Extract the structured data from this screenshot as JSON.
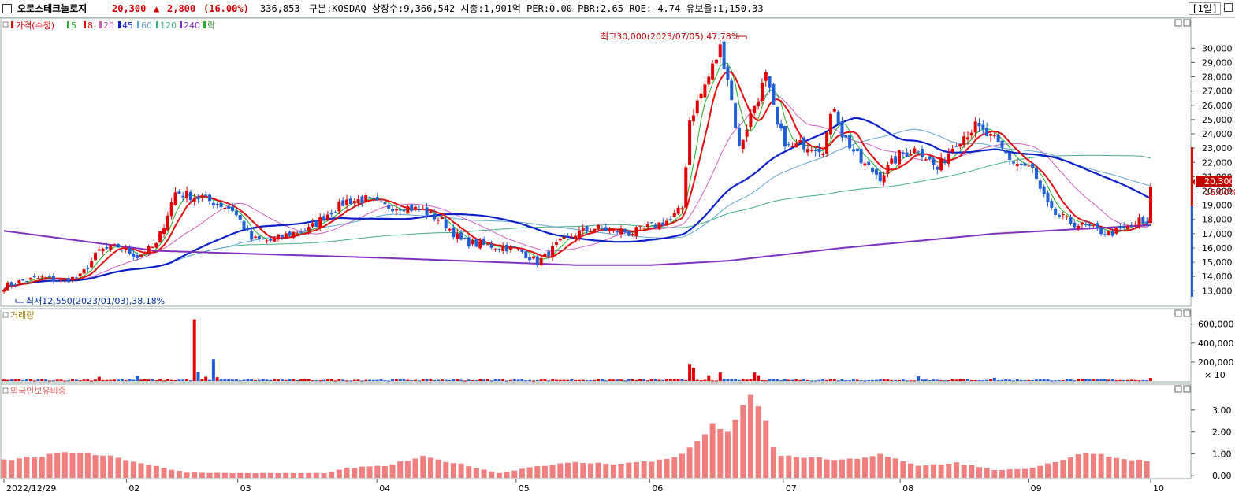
{
  "header": {
    "name": "오로스테크놀로지",
    "price": "20,300",
    "change_arrow": "▲",
    "change": "2,800",
    "change_pct": "(16.00%)",
    "volume": "336,853",
    "info": "구분:KOSDAQ 상장수:9,366,542 시총:1,901억 PER:0.00 PBR:2.65 ROE:-4.74 유보율:1,150.33",
    "timeframe": "1일"
  },
  "legend": {
    "price": "가격(수정)",
    "ma": [
      "5",
      "8",
      "20",
      "45",
      "60",
      "120",
      "240"
    ],
    "last": "락"
  },
  "annotations": {
    "high": "최고30,000(2023/07/05),47.78%",
    "low": "최저12,550(2023/01/03),38.18%",
    "last_price": "20,300",
    "last_pct": "16.00%"
  },
  "panels": {
    "volume_label": "거래량",
    "volume_multiplier": "× 10",
    "foreign_label": "외국인보유비중"
  },
  "colors": {
    "up": "#e00000",
    "down": "#1f5fd6",
    "ma5": "#20b020",
    "ma8": "#e01010",
    "ma20": "#d060c0",
    "ma45": "#0a20c8",
    "ma60": "#60a8d0",
    "ma120": "#40b080",
    "ma240": "#8030c0",
    "foreign": "#f08080"
  },
  "chart_data": [
    {
      "type": "candlestick",
      "title": "",
      "x_tick_labels": [
        "2022/12/29",
        "02",
        "03",
        "04",
        "05",
        "06",
        "07",
        "08",
        "09",
        "10"
      ],
      "y_tick_labels": [
        "13,000",
        "14,000",
        "15,000",
        "16,000",
        "17,000",
        "18,000",
        "19,000",
        "20,000",
        "21,000",
        "22,000",
        "23,000",
        "24,000",
        "25,000",
        "26,000",
        "27,000",
        "28,000",
        "29,000",
        "30,000"
      ],
      "ylim": [
        12300,
        30900
      ],
      "close_anchors": [
        [
          0,
          13300
        ],
        [
          5,
          13700
        ],
        [
          10,
          13900
        ],
        [
          15,
          13700
        ],
        [
          20,
          14000
        ],
        [
          25,
          15800
        ],
        [
          30,
          16100
        ],
        [
          35,
          15400
        ],
        [
          40,
          16200
        ],
        [
          45,
          19900
        ],
        [
          50,
          19600
        ],
        [
          55,
          19200
        ],
        [
          60,
          18700
        ],
        [
          65,
          16600
        ],
        [
          70,
          16500
        ],
        [
          75,
          17000
        ],
        [
          80,
          17300
        ],
        [
          85,
          18400
        ],
        [
          90,
          19300
        ],
        [
          95,
          19400
        ],
        [
          100,
          18900
        ],
        [
          105,
          18900
        ],
        [
          110,
          18600
        ],
        [
          115,
          17900
        ],
        [
          120,
          16500
        ],
        [
          125,
          16200
        ],
        [
          130,
          16100
        ],
        [
          135,
          15900
        ],
        [
          140,
          15000
        ],
        [
          142,
          15400
        ],
        [
          145,
          16200
        ],
        [
          150,
          17000
        ],
        [
          155,
          17400
        ],
        [
          160,
          17200
        ],
        [
          165,
          17100
        ],
        [
          170,
          17500
        ],
        [
          175,
          18000
        ],
        [
          178,
          18800
        ],
        [
          180,
          25000
        ],
        [
          185,
          28000
        ],
        [
          188,
          30000
        ],
        [
          190,
          28000
        ],
        [
          193,
          23000
        ],
        [
          197,
          26000
        ],
        [
          200,
          28000
        ],
        [
          203,
          24500
        ],
        [
          206,
          23000
        ],
        [
          210,
          23300
        ],
        [
          215,
          23000
        ],
        [
          218,
          26000
        ],
        [
          220,
          24000
        ],
        [
          225,
          22000
        ],
        [
          230,
          21000
        ],
        [
          235,
          22500
        ],
        [
          240,
          23000
        ],
        [
          245,
          21500
        ],
        [
          250,
          23500
        ],
        [
          255,
          24500
        ],
        [
          260,
          23500
        ],
        [
          265,
          22000
        ],
        [
          270,
          21500
        ],
        [
          272,
          20000
        ],
        [
          275,
          18500
        ],
        [
          280,
          17800
        ],
        [
          285,
          17400
        ],
        [
          290,
          17000
        ],
        [
          295,
          17400
        ],
        [
          298,
          17900
        ],
        [
          300,
          17500
        ],
        [
          301,
          20300
        ]
      ],
      "last_close": 20300,
      "high": 30000,
      "low": 12550
    },
    {
      "type": "bar",
      "title": "",
      "ylabel": "거래량",
      "y_tick_labels": [
        "200,000",
        "400,000",
        "600,000"
      ],
      "ylim": [
        0,
        680000
      ],
      "spikes": [
        [
          25,
          45000
        ],
        [
          35,
          55000
        ],
        [
          50,
          650000
        ],
        [
          51,
          100000
        ],
        [
          53,
          45000
        ],
        [
          55,
          230000
        ],
        [
          56,
          40000
        ],
        [
          180,
          180000
        ],
        [
          181,
          140000
        ],
        [
          185,
          60000
        ],
        [
          188,
          90000
        ],
        [
          197,
          90000
        ],
        [
          198,
          60000
        ],
        [
          240,
          50000
        ],
        [
          260,
          35000
        ],
        [
          301,
          32000
        ]
      ],
      "base_volume": 12000
    },
    {
      "type": "bar",
      "title": "",
      "ylabel": "외국인보유비중",
      "y_tick_labels": [
        "0.00",
        "1.00",
        "2.00",
        "3.00"
      ],
      "ylim": [
        -0.1,
        3.75
      ],
      "anchors": [
        [
          0,
          0.72
        ],
        [
          10,
          0.9
        ],
        [
          20,
          1.08
        ],
        [
          28,
          0.9
        ],
        [
          38,
          0.5
        ],
        [
          48,
          0.15
        ],
        [
          60,
          0.12
        ],
        [
          85,
          0.12
        ],
        [
          90,
          0.35
        ],
        [
          100,
          0.45
        ],
        [
          110,
          0.85
        ],
        [
          118,
          0.6
        ],
        [
          130,
          0.12
        ],
        [
          140,
          0.45
        ],
        [
          150,
          0.6
        ],
        [
          160,
          0.55
        ],
        [
          170,
          0.65
        ],
        [
          178,
          0.95
        ],
        [
          182,
          1.6
        ],
        [
          186,
          2.25
        ],
        [
          190,
          2.1
        ],
        [
          193,
          2.8
        ],
        [
          196,
          3.5
        ],
        [
          199,
          3.0
        ],
        [
          201,
          1.8
        ],
        [
          203,
          0.9
        ],
        [
          210,
          0.85
        ],
        [
          220,
          0.7
        ],
        [
          230,
          0.95
        ],
        [
          240,
          0.45
        ],
        [
          250,
          0.6
        ],
        [
          260,
          0.25
        ],
        [
          270,
          0.35
        ],
        [
          280,
          0.8
        ],
        [
          285,
          1.1
        ],
        [
          290,
          0.85
        ],
        [
          301,
          0.65
        ]
      ]
    }
  ]
}
